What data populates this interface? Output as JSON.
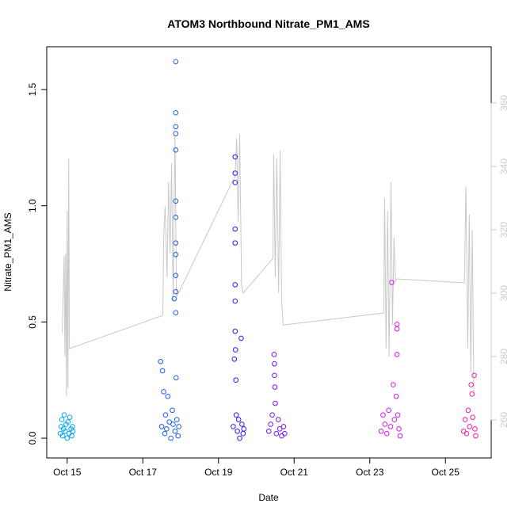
{
  "chart_data": {
    "type": "scatter",
    "title": "ATOM3 Northbound Nitrate_PM1_AMS",
    "x_label": "Date",
    "y_label": "Nitrate_PM1_AMS",
    "xlim": [
      14.46,
      26.21
    ],
    "xticks": [
      {
        "value": 15,
        "label": "Oct 15"
      },
      {
        "value": 17,
        "label": "Oct 17"
      },
      {
        "value": 19,
        "label": "Oct 19"
      },
      {
        "value": 21,
        "label": "Oct 21"
      },
      {
        "value": 23,
        "label": "Oct 23"
      },
      {
        "value": 25,
        "label": "Oct 25"
      }
    ],
    "ylim": [
      -0.085,
      1.684
    ],
    "yticks": [
      {
        "value": 0,
        "label": "0.0"
      },
      0.5,
      {
        "value": 1,
        "label": "1.0"
      },
      1.5
    ],
    "y2lim": [
      248,
      377.75
    ],
    "y2ticks": [
      260,
      280,
      300,
      320,
      340,
      360
    ],
    "y2_tick_color": "#cccccc",
    "series": [
      {
        "type": "scatter",
        "color": "#0ea5ef",
        "x": [
          14.82,
          14.84,
          14.86,
          14.88,
          14.9,
          14.92,
          14.95,
          14.97,
          15.0,
          15.02,
          15.05,
          15.07,
          15.1,
          15.12,
          15.14,
          15.15
        ],
        "values": [
          0.02,
          0.05,
          0.08,
          0.01,
          0.04,
          0.1,
          0.03,
          0.06,
          0.0,
          0.07,
          0.02,
          0.09,
          0.04,
          0.01,
          0.05,
          0.03
        ]
      },
      {
        "type": "scatter",
        "color": "#1a5cf0",
        "x": [
          17.47,
          17.5,
          17.52,
          17.55,
          17.58,
          17.6,
          17.63,
          17.66,
          17.7,
          17.74,
          17.78,
          17.8,
          17.83,
          17.85,
          17.87,
          17.87,
          17.87,
          17.87,
          17.87,
          17.87,
          17.87,
          17.87,
          17.87,
          17.87,
          17.87,
          17.87,
          17.88,
          17.9,
          17.93,
          17.95
        ],
        "values": [
          0.33,
          0.05,
          0.29,
          0.2,
          0.02,
          0.1,
          0.04,
          0.18,
          0.07,
          0.0,
          0.12,
          0.06,
          0.6,
          0.03,
          1.62,
          1.4,
          1.34,
          1.31,
          1.24,
          1.02,
          0.95,
          0.84,
          0.79,
          0.7,
          0.63,
          0.54,
          0.26,
          0.08,
          0.01,
          0.05
        ]
      },
      {
        "type": "scatter",
        "color": "#2a1af5",
        "x": [
          19.39,
          19.42,
          19.44,
          19.44,
          19.44,
          19.44,
          19.44,
          19.44,
          19.44,
          19.44,
          19.45,
          19.46,
          19.47,
          19.5,
          19.53,
          19.56,
          19.6,
          19.62,
          19.65,
          19.67
        ],
        "values": [
          0.05,
          0.34,
          1.21,
          1.14,
          1.1,
          0.9,
          0.84,
          0.66,
          0.59,
          0.46,
          0.38,
          0.25,
          0.1,
          0.03,
          0.08,
          0.0,
          0.43,
          0.06,
          0.02,
          0.04
        ]
      },
      {
        "type": "scatter",
        "color": "#7a12f5",
        "x": [
          20.33,
          20.38,
          20.42,
          20.47,
          20.48,
          20.48,
          20.49,
          20.5,
          20.53,
          20.58,
          20.62,
          20.67,
          20.72,
          20.75
        ],
        "values": [
          0.03,
          0.06,
          0.1,
          0.36,
          0.32,
          0.27,
          0.22,
          0.15,
          0.02,
          0.08,
          0.04,
          0.01,
          0.05,
          0.02
        ]
      },
      {
        "type": "scatter",
        "color": "#d01af0",
        "x": [
          23.3,
          23.35,
          23.4,
          23.45,
          23.5,
          23.55,
          23.58,
          23.62,
          23.65,
          23.7,
          23.72,
          23.72,
          23.72,
          23.74,
          23.77,
          23.8
        ],
        "values": [
          0.03,
          0.1,
          0.06,
          0.02,
          0.12,
          0.05,
          0.67,
          0.23,
          0.08,
          0.18,
          0.49,
          0.47,
          0.36,
          0.1,
          0.04,
          0.01
        ]
      },
      {
        "type": "scatter",
        "color": "#f01ab0",
        "x": [
          25.48,
          25.52,
          25.56,
          25.6,
          25.64,
          25.68,
          25.7,
          25.72,
          25.76,
          25.78,
          25.8
        ],
        "values": [
          0.03,
          0.08,
          0.02,
          0.12,
          0.05,
          0.23,
          0.19,
          0.09,
          0.27,
          0.04,
          0.01
        ]
      },
      {
        "type": "line",
        "axis": "y2",
        "color": "#c8c8c8",
        "x": [
          14.87,
          14.92,
          14.94,
          14.96,
          14.98,
          15.0,
          15.02,
          15.04,
          15.06,
          17.53,
          17.55,
          17.59,
          17.64,
          17.68,
          17.72,
          17.76,
          17.8,
          17.85,
          17.89,
          19.44,
          19.48,
          19.52,
          19.56,
          19.61,
          19.65,
          20.44,
          20.46,
          20.5,
          20.54,
          20.59,
          20.63,
          20.67,
          20.71,
          20.75,
          23.37,
          23.39,
          23.43,
          23.47,
          23.51,
          23.56,
          23.6,
          23.64,
          23.68,
          23.72,
          25.5,
          25.54,
          25.59,
          25.63,
          25.67,
          25.71,
          25.75
        ],
        "values": [
          287.5,
          311.75,
          280,
          312.5,
          267.5,
          326,
          270,
          342.5,
          282.5,
          293,
          317.5,
          327.5,
          305,
          335,
          312.5,
          341,
          297.5,
          350,
          298.75,
          337,
          348.75,
          322.5,
          350,
          302.5,
          300,
          311,
          343.75,
          305,
          342.5,
          300,
          345,
          297.5,
          290,
          290,
          293.75,
          330,
          282.5,
          326,
          280,
          335,
          290,
          317.5,
          303.75,
          304.5,
          303.25,
          333.75,
          282.5,
          325,
          275,
          320,
          267.5
        ]
      }
    ]
  }
}
